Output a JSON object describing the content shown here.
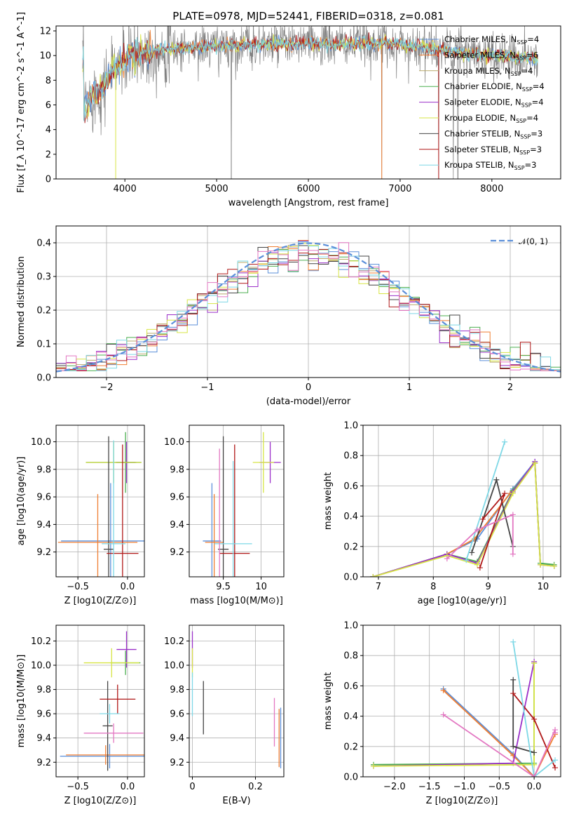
{
  "figure": {
    "title": "PLATE=0978, MJD=52441, FIBERID=0318, z=0.081",
    "colors": {
      "Chabrier MILES": "#5b8fd9",
      "Salpeter MILES": "#f07f33",
      "Kroupa MILES": "#b8a86a",
      "Chabrier ELODIE": "#4caf50",
      "Salpeter ELODIE": "#9b30c9",
      "Kroupa ELODIE": "#d7e545",
      "Chabrier STELIB": "#444444",
      "Salpeter STELIB": "#b01818",
      "Kroupa STELIB": "#7ed8e6",
      "Pink": "#e377c2",
      "Data": "#808080",
      "Olive": "#b5cf3c"
    }
  },
  "chart_data": [
    {
      "id": "spectrum",
      "type": "line",
      "xlabel": "wavelength [Angstrom, rest frame]",
      "ylabel": "Flux [f_λ 10^-17 erg cm^-2 s^-1 A^-1]",
      "xlim": [
        3250,
        8750
      ],
      "ylim": [
        0,
        12.4
      ],
      "xticks": [
        4000,
        5000,
        6000,
        7000,
        8000
      ],
      "yticks": [
        0,
        2,
        4,
        6,
        8,
        10,
        12
      ],
      "grid": false,
      "legend_position": "right",
      "legend": [
        {
          "label": "Chabrier MILES, N",
          "sub": "SSP",
          "suffix": "=4",
          "color_key": "Chabrier MILES"
        },
        {
          "label": "Salpeter MILES, N",
          "sub": "SSP",
          "suffix": "=6",
          "color_key": "Salpeter MILES"
        },
        {
          "label": "Kroupa MILES, N",
          "sub": "SSP",
          "suffix": "=4",
          "color_key": "Kroupa MILES"
        },
        {
          "label": "Chabrier ELODIE, N",
          "sub": "SSP",
          "suffix": "=4",
          "color_key": "Chabrier ELODIE"
        },
        {
          "label": "Salpeter ELODIE, N",
          "sub": "SSP",
          "suffix": "=4",
          "color_key": "Salpeter ELODIE"
        },
        {
          "label": "Kroupa ELODIE, N",
          "sub": "SSP",
          "suffix": "=4",
          "color_key": "Kroupa ELODIE"
        },
        {
          "label": "Chabrier STELIB, N",
          "sub": "SSP",
          "suffix": "=3",
          "color_key": "Chabrier STELIB"
        },
        {
          "label": "Salpeter STELIB, N",
          "sub": "SSP",
          "suffix": "=3",
          "color_key": "Salpeter STELIB"
        },
        {
          "label": "Kroupa STELIB, N",
          "sub": "SSP",
          "suffix": "=3",
          "color_key": "Kroupa STELIB"
        }
      ],
      "continuum": [
        [
          3550,
          5.6
        ],
        [
          3650,
          6.8
        ],
        [
          3750,
          7.3
        ],
        [
          3850,
          8.6
        ],
        [
          3950,
          9.4
        ],
        [
          4050,
          9.8
        ],
        [
          4200,
          10.2
        ],
        [
          4400,
          10.5
        ],
        [
          4600,
          10.6
        ],
        [
          4800,
          10.7
        ],
        [
          5000,
          10.8
        ],
        [
          5200,
          10.8
        ],
        [
          5400,
          10.9
        ],
        [
          5600,
          10.9
        ],
        [
          5800,
          10.9
        ],
        [
          6000,
          11.0
        ],
        [
          6200,
          10.9
        ],
        [
          6400,
          10.9
        ],
        [
          6600,
          11.0
        ],
        [
          6800,
          11.0
        ],
        [
          7000,
          10.9
        ],
        [
          7200,
          10.8
        ],
        [
          7400,
          10.5
        ],
        [
          7600,
          10.3
        ],
        [
          7800,
          10.1
        ],
        [
          8000,
          10.0
        ],
        [
          8200,
          9.9
        ],
        [
          8400,
          9.8
        ],
        [
          8500,
          9.7
        ]
      ],
      "data_gaps": [
        5160,
        6800,
        7420,
        7630,
        7580
      ]
    },
    {
      "id": "residuals",
      "type": "histogram",
      "xlabel": "(data-model)/error",
      "ylabel": "Normed distribution",
      "xlim": [
        -2.5,
        2.5
      ],
      "ylim": [
        0,
        0.45
      ],
      "xticks": [
        -2,
        -1,
        0,
        1,
        2
      ],
      "yticks": [
        0.0,
        0.1,
        0.2,
        0.3,
        0.4
      ],
      "grid": true,
      "legend_position": "top-right",
      "legend": [
        {
          "label": "𝒩(0, 1)",
          "style": "dashed",
          "color_key": "Chabrier MILES"
        }
      ],
      "bin_width": 0.1,
      "bin_start": -2.5
    },
    {
      "id": "age-vs-Z",
      "type": "scatter",
      "xlabel": "Z [log10(Z/Z⊙)]",
      "ylabel": "age  [log10(age/yr)]",
      "xlim": [
        -0.72,
        0.17
      ],
      "ylim": [
        9.02,
        10.12
      ],
      "xticks": [
        -0.5,
        0.0
      ],
      "xtick_labels": [
        "−0.5",
        "0.0"
      ],
      "yticks": [
        9.2,
        9.4,
        9.6,
        9.8,
        10.0
      ],
      "grid": true,
      "points": [
        {
          "c": "Chabrier MILES",
          "x": -0.17,
          "y": 9.28,
          "xe": 0.5,
          "ye": 0.42
        },
        {
          "c": "Salpeter MILES",
          "x": -0.3,
          "y": 9.27,
          "xe": 0.4,
          "ye": 0.35
        },
        {
          "c": "Chabrier ELODIE",
          "x": -0.02,
          "y": 9.85,
          "xe": 0.1,
          "ye": 0.22
        },
        {
          "c": "Salpeter ELODIE",
          "x": -0.01,
          "y": 9.85,
          "xe": 0.1,
          "ye": 0.15
        },
        {
          "c": "Kroupa ELODIE",
          "x": -0.14,
          "y": 9.85,
          "xe": 0.28,
          "ye": 0.15
        },
        {
          "c": "Olive",
          "x": -0.14,
          "y": 9.85,
          "xe": 0.28,
          "ye": 0.15
        },
        {
          "c": "Chabrier STELIB",
          "x": -0.19,
          "y": 9.22,
          "xe": 0.05,
          "ye": 0.82
        },
        {
          "c": "Salpeter STELIB",
          "x": -0.05,
          "y": 9.19,
          "xe": 0.16,
          "ye": 0.79
        },
        {
          "c": "Kroupa STELIB",
          "x": -0.14,
          "y": 9.26,
          "xe": 0.12,
          "ye": 0.75
        }
      ]
    },
    {
      "id": "age-vs-mass",
      "type": "scatter",
      "xlabel": "mass [log10(M/M⊙)]",
      "ylabel": "",
      "xlim": [
        9.05,
        10.3
      ],
      "ylim": [
        9.02,
        10.12
      ],
      "xticks": [
        9.5,
        10.0
      ],
      "yticks": [
        9.2,
        9.4,
        9.6,
        9.8,
        10.0
      ],
      "grid": true,
      "points": [
        {
          "c": "Chabrier MILES",
          "x": 9.35,
          "y": 9.28,
          "xe": 0.12,
          "ye": 0.42
        },
        {
          "c": "Salpeter MILES",
          "x": 9.38,
          "y": 9.27,
          "xe": 0.12,
          "ye": 0.35
        },
        {
          "c": "Salpeter ELODIE",
          "x": 10.12,
          "y": 9.85,
          "xe": 0.14,
          "ye": 0.15
        },
        {
          "c": "Kroupa ELODIE",
          "x": 10.03,
          "y": 9.85,
          "xe": 0.14,
          "ye": 0.22
        },
        {
          "c": "Chabrier STELIB",
          "x": 9.5,
          "y": 9.22,
          "xe": 0.07,
          "ye": 0.82
        },
        {
          "c": "Salpeter STELIB",
          "x": 9.65,
          "y": 9.19,
          "xe": 0.2,
          "ye": 0.79
        },
        {
          "c": "Kroupa STELIB",
          "x": 9.63,
          "y": 9.26,
          "xe": 0.25,
          "ye": 0.6
        },
        {
          "c": "Pink",
          "x": 9.45,
          "y": 9.2,
          "xe": 0.0,
          "ye": 0.75
        }
      ]
    },
    {
      "id": "mass-weight-vs-age",
      "type": "line",
      "xlabel": "age  [log10(age/yr)]",
      "ylabel": "mass weight",
      "xlim": [
        6.72,
        10.32
      ],
      "ylim": [
        0,
        1
      ],
      "xticks": [
        7,
        8,
        9,
        10
      ],
      "yticks": [
        0.0,
        0.2,
        0.4,
        0.6,
        0.8,
        1.0
      ],
      "grid": true,
      "series": [
        {
          "c": "Chabrier MILES",
          "x": [
            6.9,
            8.25,
            8.8,
            9.45,
            9.85,
            9.95,
            10.2
          ],
          "y": [
            0.0,
            0.15,
            0.25,
            0.58,
            0.76,
            0.09,
            0.07
          ]
        },
        {
          "c": "Salpeter MILES",
          "x": [
            6.9,
            8.25,
            8.75,
            9.4,
            9.85,
            9.95,
            10.2
          ],
          "y": [
            0.0,
            0.15,
            0.25,
            0.55,
            0.75,
            0.08,
            0.07
          ]
        },
        {
          "c": "Chabrier ELODIE",
          "x": [
            6.9,
            8.25,
            8.8,
            9.45,
            9.85,
            9.95,
            10.2
          ],
          "y": [
            0.0,
            0.15,
            0.1,
            0.57,
            0.75,
            0.09,
            0.08
          ]
        },
        {
          "c": "Salpeter ELODIE",
          "x": [
            6.9,
            8.25,
            8.8,
            9.45,
            9.85,
            9.95,
            10.2
          ],
          "y": [
            0.0,
            0.15,
            0.09,
            0.56,
            0.76,
            0.08,
            0.07
          ]
        },
        {
          "c": "Kroupa ELODIE",
          "x": [
            6.9,
            8.25,
            8.8,
            9.45,
            9.85,
            9.95,
            10.2
          ],
          "y": [
            0.0,
            0.14,
            0.08,
            0.55,
            0.75,
            0.08,
            0.07
          ]
        },
        {
          "c": "Chabrier STELIB",
          "x": [
            8.7,
            9.15,
            9.45
          ],
          "y": [
            0.16,
            0.64,
            0.2
          ]
        },
        {
          "c": "Salpeter STELIB",
          "x": [
            8.85,
            9.3,
            8.9
          ],
          "y": [
            0.06,
            0.55,
            0.38
          ]
        },
        {
          "c": "Kroupa STELIB",
          "x": [
            8.6,
            9.3
          ],
          "y": [
            0.11,
            0.89
          ]
        },
        {
          "c": "Pink",
          "x": [
            8.25,
            8.8,
            9.45,
            9.45
          ],
          "y": [
            0.12,
            0.31,
            0.41,
            0.15
          ]
        }
      ]
    },
    {
      "id": "mass-vs-Z",
      "type": "scatter",
      "xlabel": "Z [log10(Z/Z⊙)]",
      "ylabel": "mass [log10(M/M⊙)]",
      "xlim": [
        -0.72,
        0.17
      ],
      "ylim": [
        9.08,
        10.33
      ],
      "xticks": [
        -0.5,
        0.0
      ],
      "xtick_labels": [
        "−0.5",
        "0.0"
      ],
      "yticks": [
        9.2,
        9.4,
        9.6,
        9.8,
        10.0,
        10.2
      ],
      "grid": true,
      "points": [
        {
          "c": "Chabrier MILES",
          "x": -0.18,
          "y": 9.25,
          "xe": 0.5,
          "ye": 0.1
        },
        {
          "c": "Salpeter MILES",
          "x": -0.22,
          "y": 9.26,
          "xe": 0.4,
          "ye": 0.08
        },
        {
          "c": "Chabrier ELODIE",
          "x": -0.02,
          "y": 10.02,
          "xe": 0.15,
          "ye": 0.1
        },
        {
          "c": "Salpeter ELODIE",
          "x": -0.01,
          "y": 10.13,
          "xe": 0.1,
          "ye": 0.15
        },
        {
          "c": "Kroupa ELODIE",
          "x": -0.16,
          "y": 10.02,
          "xe": 0.28,
          "ye": 0.12
        },
        {
          "c": "Chabrier STELIB",
          "x": -0.2,
          "y": 9.5,
          "xe": 0.05,
          "ye": 0.37
        },
        {
          "c": "Salpeter STELIB",
          "x": -0.1,
          "y": 9.72,
          "xe": 0.18,
          "ye": 0.12
        },
        {
          "c": "Kroupa STELIB",
          "x": -0.18,
          "y": 9.6,
          "xe": 0.1,
          "ye": 0.08
        },
        {
          "c": "Pink",
          "x": -0.14,
          "y": 9.44,
          "xe": 0.3,
          "ye": 0.08
        }
      ]
    },
    {
      "id": "mass-vs-EBV",
      "type": "scatter",
      "xlabel": "E(B-V)",
      "ylabel": "",
      "xlim": [
        -0.01,
        0.29
      ],
      "ylim": [
        9.08,
        10.33
      ],
      "xticks": [
        0.0,
        0.2
      ],
      "yticks": [
        9.2,
        9.4,
        9.6,
        9.8,
        10.0,
        10.2
      ],
      "grid": true,
      "points": [
        {
          "c": "Salpeter ELODIE",
          "x": 0.0,
          "y": 10.13,
          "xe": 0.0,
          "ye": 0.15
        },
        {
          "c": "Kroupa ELODIE",
          "x": 0.0,
          "y": 10.02,
          "xe": 0.0,
          "ye": 0.12
        },
        {
          "c": "Kroupa STELIB",
          "x": 0.0,
          "y": 9.76,
          "xe": 0.0,
          "ye": 0.18
        },
        {
          "c": "Chabrier STELIB",
          "x": 0.035,
          "y": 9.65,
          "xe": 0.0,
          "ye": 0.22
        },
        {
          "c": "Pink",
          "x": 0.26,
          "y": 9.53,
          "xe": 0.0,
          "ye": 0.2
        },
        {
          "c": "Salpeter MILES",
          "x": 0.275,
          "y": 9.4,
          "xe": 0.0,
          "ye": 0.24
        },
        {
          "c": "Chabrier MILES",
          "x": 0.28,
          "y": 9.4,
          "xe": 0.0,
          "ye": 0.25
        }
      ]
    },
    {
      "id": "mass-weight-vs-Z",
      "type": "line",
      "xlabel": "Z [log10(Z/Z⊙)]",
      "ylabel": "mass weight",
      "xlim": [
        -2.45,
        0.38
      ],
      "ylim": [
        0,
        1
      ],
      "xticks": [
        -2.0,
        -1.5,
        -1.0,
        -0.5,
        0.0
      ],
      "xtick_labels": [
        "−2.0",
        "−1.5",
        "−1.0",
        "−0.5",
        "0.0"
      ],
      "yticks": [
        0.0,
        0.2,
        0.4,
        0.6,
        0.8,
        1.0
      ],
      "grid": true,
      "series": [
        {
          "c": "Chabrier MILES",
          "x": [
            -1.3,
            -0.3,
            0.0
          ],
          "y": [
            0.58,
            0.15,
            0.0
          ]
        },
        {
          "c": "Salpeter MILES",
          "x": [
            -1.3,
            -0.3,
            0.0,
            0.3
          ],
          "y": [
            0.57,
            0.14,
            0.0,
            0.28
          ]
        },
        {
          "c": "Chabrier ELODIE",
          "x": [
            -2.3,
            0.0,
            0.0
          ],
          "y": [
            0.08,
            0.09,
            0.75
          ]
        },
        {
          "c": "Salpeter ELODIE",
          "x": [
            -2.3,
            -0.3,
            0.0
          ],
          "y": [
            0.07,
            0.09,
            0.76
          ]
        },
        {
          "c": "Kroupa ELODIE",
          "x": [
            -2.3,
            0.0,
            0.0
          ],
          "y": [
            0.07,
            0.08,
            0.75
          ]
        },
        {
          "c": "Chabrier STELIB",
          "x": [
            -0.3,
            -0.3,
            0.0
          ],
          "y": [
            0.64,
            0.2,
            0.16
          ]
        },
        {
          "c": "Salpeter STELIB",
          "x": [
            -0.3,
            0.0,
            0.3
          ],
          "y": [
            0.55,
            0.38,
            0.06
          ]
        },
        {
          "c": "Kroupa STELIB",
          "x": [
            -0.3,
            0.0,
            0.3
          ],
          "y": [
            0.89,
            0.0,
            0.11
          ]
        },
        {
          "c": "Pink",
          "x": [
            -1.3,
            0.0,
            0.3,
            0.3
          ],
          "y": [
            0.41,
            0.0,
            0.31,
            0.29
          ]
        }
      ]
    }
  ]
}
